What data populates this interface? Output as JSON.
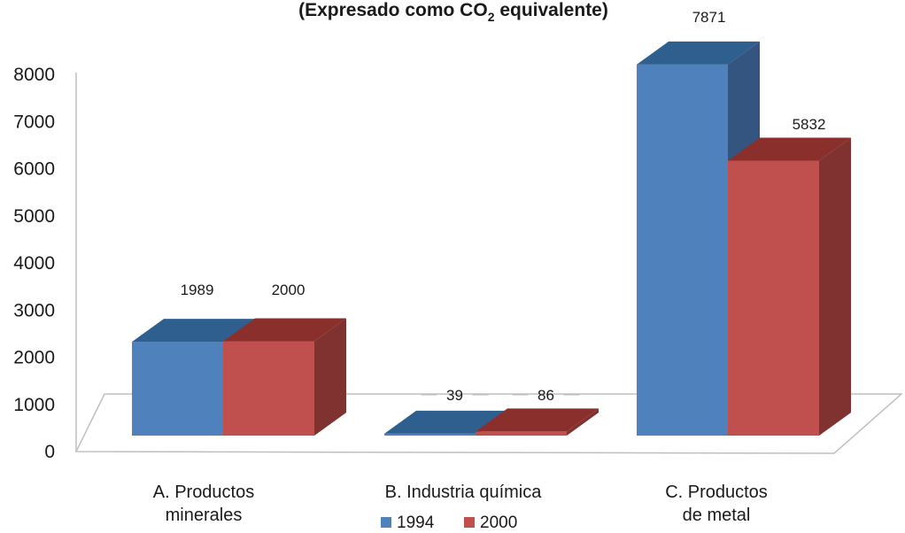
{
  "chart_data": {
    "type": "bar",
    "title": "(Expresado como CO",
    "title_subscript": "2",
    "title_suffix": " equivalente)",
    "categories": [
      [
        "A. Productos",
        "minerales"
      ],
      [
        "B. Industria química"
      ],
      [
        "C. Productos",
        "de metal"
      ]
    ],
    "series": [
      {
        "name": "1994",
        "values": [
          1989,
          39,
          7871
        ],
        "color": "#4f81bd",
        "top_color": "#2f5f8f",
        "side_color": "#34557f"
      },
      {
        "name": "2000",
        "values": [
          2000,
          86,
          5832
        ],
        "color": "#c0504d",
        "top_color": "#8b2f2d",
        "side_color": "#7f3230"
      }
    ],
    "yticks": [
      0,
      1000,
      2000,
      3000,
      4000,
      5000,
      6000,
      7000,
      8000
    ],
    "ylim": [
      0,
      8000
    ],
    "style": "3d-clustered-column",
    "legend_position": "bottom",
    "grid": false
  }
}
